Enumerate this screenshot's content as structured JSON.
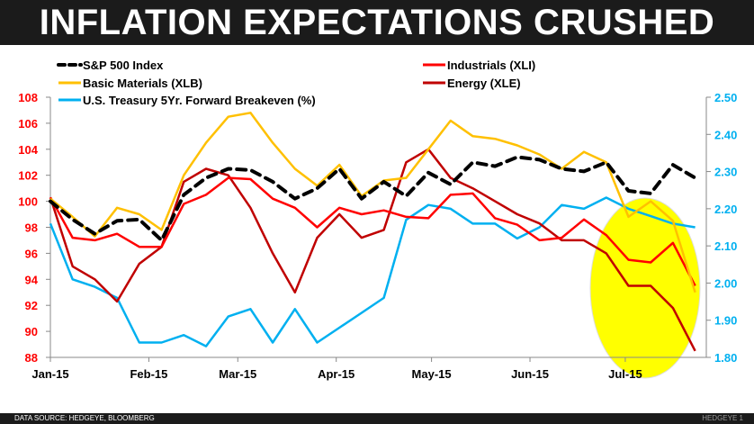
{
  "title": "INFLATION EXPECTATIONS CRUSHED",
  "footer": {
    "source": "DATA SOURCE: HEDGEYE, BLOOMBERG",
    "brand": "HEDGEYE",
    "page": "1"
  },
  "chart_data": {
    "type": "line",
    "title": "INFLATION EXPECTATIONS CRUSHED",
    "x_tick_labels": [
      "Jan-15",
      "Feb-15",
      "Mar-15",
      "Apr-15",
      "May-15",
      "Jun-15",
      "Jul-15"
    ],
    "x": [
      "2015-01-01",
      "2015-01-08",
      "2015-01-15",
      "2015-01-22",
      "2015-01-29",
      "2015-02-05",
      "2015-02-12",
      "2015-02-19",
      "2015-02-26",
      "2015-03-05",
      "2015-03-12",
      "2015-03-19",
      "2015-03-26",
      "2015-04-02",
      "2015-04-09",
      "2015-04-16",
      "2015-04-23",
      "2015-04-30",
      "2015-05-07",
      "2015-05-14",
      "2015-05-21",
      "2015-05-28",
      "2015-06-04",
      "2015-06-11",
      "2015-06-18",
      "2015-06-25",
      "2015-07-02",
      "2015-07-09",
      "2015-07-16",
      "2015-07-23"
    ],
    "y_left": {
      "range": [
        88,
        108
      ],
      "ticks": [
        88,
        90,
        92,
        94,
        96,
        98,
        100,
        102,
        104,
        106,
        108
      ],
      "color": "#ff0000"
    },
    "y_right": {
      "range": [
        1.8,
        2.5
      ],
      "ticks": [
        "1.80",
        "1.90",
        "2.00",
        "2.10",
        "2.20",
        "2.30",
        "2.40",
        "2.50"
      ],
      "color": "#00b0f0"
    },
    "legend_position": "top",
    "series": [
      {
        "name": "S&P 500 Index",
        "axis": "left",
        "color": "#000000",
        "dashed": true,
        "values": [
          100,
          98.6,
          97.5,
          98.5,
          98.6,
          97.0,
          100.5,
          101.8,
          102.5,
          102.4,
          101.5,
          100.2,
          101.0,
          102.5,
          100.2,
          101.5,
          100.4,
          102.2,
          101.3,
          103.0,
          102.7,
          103.4,
          103.2,
          102.5,
          102.3,
          103.0,
          100.8,
          100.6,
          102.8,
          101.8
        ]
      },
      {
        "name": "Industrials (XLI)",
        "axis": "left",
        "color": "#ff0000",
        "values": [
          100.3,
          97.2,
          97.0,
          97.5,
          96.5,
          96.5,
          99.8,
          100.5,
          101.8,
          101.7,
          100.2,
          99.5,
          98.0,
          99.5,
          99.0,
          99.3,
          98.8,
          98.7,
          100.5,
          100.6,
          98.7,
          98.2,
          97.0,
          97.2,
          98.6,
          97.4,
          95.5,
          95.3,
          96.8,
          93.5
        ]
      },
      {
        "name": "Basic Materials (XLB)",
        "axis": "left",
        "color": "#ffc000",
        "values": [
          100.2,
          98.8,
          97.3,
          99.5,
          99.0,
          97.8,
          102.0,
          104.5,
          106.5,
          106.8,
          104.5,
          102.5,
          101.2,
          102.8,
          100.4,
          101.6,
          101.8,
          104.0,
          106.2,
          105.0,
          104.8,
          104.3,
          103.6,
          102.5,
          103.8,
          103.0,
          98.8,
          100.0,
          98.5,
          93.0
        ]
      },
      {
        "name": "Energy (XLE)",
        "axis": "left",
        "color": "#c00000",
        "values": [
          100.3,
          95.0,
          94.0,
          92.3,
          95.2,
          96.5,
          101.5,
          102.5,
          102.0,
          99.5,
          96.0,
          93.0,
          97.2,
          99.0,
          97.2,
          97.8,
          103.0,
          104.0,
          101.8,
          101.0,
          100.0,
          99.0,
          98.3,
          97.0,
          97.0,
          96.0,
          93.5,
          93.5,
          91.8,
          88.5
        ]
      },
      {
        "name": "U.S. Treasury 5Yr. Forward Breakeven (%)",
        "axis": "right",
        "color": "#00b0f0",
        "values": [
          2.16,
          2.01,
          1.99,
          1.96,
          1.84,
          1.84,
          1.86,
          1.83,
          1.91,
          1.93,
          1.84,
          1.93,
          1.84,
          1.88,
          1.92,
          1.96,
          2.17,
          2.21,
          2.2,
          2.16,
          2.16,
          2.12,
          2.15,
          2.21,
          2.2,
          2.23,
          2.2,
          2.18,
          2.16,
          2.15
        ]
      }
    ],
    "annotation": {
      "shape": "ellipse",
      "color": "#ffff00",
      "around": "Jul-15"
    }
  }
}
